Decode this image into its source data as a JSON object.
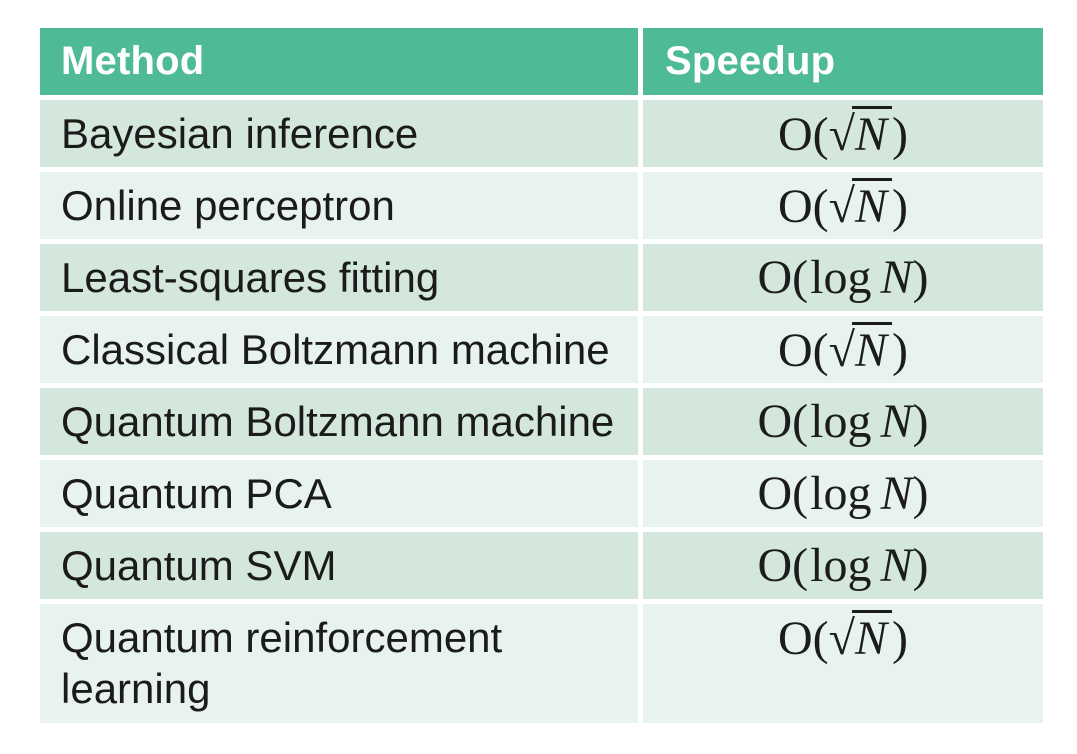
{
  "table": {
    "header": {
      "method_label": "Method",
      "speedup_label": "Speedup"
    },
    "math_tokens": {
      "big_o": "O",
      "open_paren": "(",
      "close_paren": ")",
      "log": "log",
      "radical": "√",
      "variable": "N"
    }
  },
  "chart_data": {
    "type": "table",
    "columns": [
      "Method",
      "Speedup"
    ],
    "rows": [
      {
        "method": "Bayesian inference",
        "speedup": "O(√N)",
        "speedup_kind": "sqrt"
      },
      {
        "method": "Online perceptron",
        "speedup": "O(√N)",
        "speedup_kind": "sqrt"
      },
      {
        "method": "Least-squares fitting",
        "speedup": "O(log N)",
        "speedup_kind": "log"
      },
      {
        "method": "Classical Boltzmann machine",
        "speedup": "O(√N)",
        "speedup_kind": "sqrt"
      },
      {
        "method": "Quantum Boltzmann machine",
        "speedup": "O(log N)",
        "speedup_kind": "log"
      },
      {
        "method": "Quantum PCA",
        "speedup": "O(log N)",
        "speedup_kind": "log"
      },
      {
        "method": "Quantum SVM",
        "speedup": "O(log N)",
        "speedup_kind": "log"
      },
      {
        "method": "Quantum reinforcement learning",
        "speedup": "O(√N)",
        "speedup_kind": "sqrt"
      }
    ]
  },
  "colors": {
    "header_bg": "#4ebb95",
    "header_text": "#ffffff",
    "row_dark": "#d3e7dc",
    "row_light": "#e9f3ee",
    "body_text": "#1b1b1b",
    "page_bg": "#ffffff"
  }
}
